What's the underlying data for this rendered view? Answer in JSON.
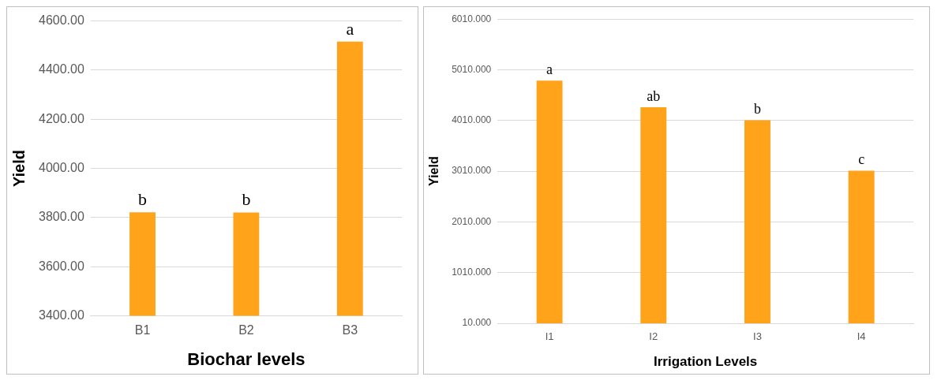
{
  "chart_data": [
    {
      "type": "bar",
      "xlabel": "Biochar levels",
      "ylabel": "Yield",
      "categories": [
        "B1",
        "B2",
        "B3"
      ],
      "values": [
        3821,
        3820,
        4516
      ],
      "color": "#ffa31a",
      "ylim": [
        3400,
        4600
      ],
      "yticks": [
        {
          "value": 3400,
          "label": "3400.00"
        },
        {
          "value": 3600,
          "label": "3600.00"
        },
        {
          "value": 3800,
          "label": "3800.00"
        },
        {
          "value": 4000,
          "label": "4000.00"
        },
        {
          "value": 4200,
          "label": "4200.00"
        },
        {
          "value": 4400,
          "label": "4400.00"
        },
        {
          "value": 4600,
          "label": "4600.00"
        }
      ],
      "grid": "y",
      "annotations": [
        {
          "text": "b",
          "x": "B1",
          "y": 3821
        },
        {
          "text": "b",
          "x": "B2",
          "y": 3820
        },
        {
          "text": "a",
          "x": "B3",
          "y": 4516
        }
      ]
    },
    {
      "type": "bar",
      "xlabel": "Irrigation Levels",
      "ylabel": "Yield",
      "categories": [
        "I1",
        "I2",
        "I3",
        "I4"
      ],
      "values": [
        4795,
        4270,
        4016,
        3019
      ],
      "color": "#ffa31a",
      "ylim": [
        10,
        6010
      ],
      "yticks": [
        {
          "value": 10,
          "label": "10.000"
        },
        {
          "value": 1010,
          "label": "1010.000"
        },
        {
          "value": 2010,
          "label": "2010.000"
        },
        {
          "value": 3010,
          "label": "3010.000"
        },
        {
          "value": 4010,
          "label": "4010.000"
        },
        {
          "value": 5010,
          "label": "5010.000"
        },
        {
          "value": 6010,
          "label": "6010.000"
        }
      ],
      "grid": "y",
      "annotations": [
        {
          "text": "a",
          "x": "I1",
          "y": 4795
        },
        {
          "text": "ab",
          "x": "I2",
          "y": 4270
        },
        {
          "text": "b",
          "x": "I3",
          "y": 4016
        },
        {
          "text": "c",
          "x": "I4",
          "y": 3019
        }
      ]
    }
  ]
}
